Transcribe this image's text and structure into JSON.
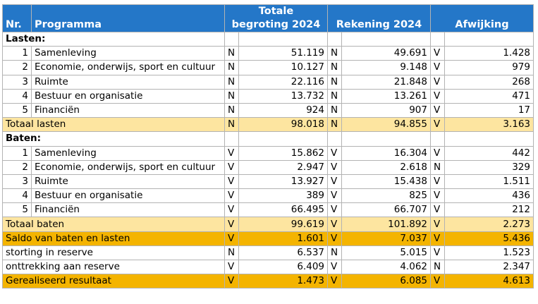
{
  "headers": {
    "nr": "Nr.",
    "programma": "Programma",
    "begroting_line1": "Totale",
    "begroting_line2": "begroting 2024",
    "rekening": "Rekening 2024",
    "afwijking": "Afwijking"
  },
  "lasten": {
    "label": "Lasten:",
    "rows": [
      {
        "nr": "1",
        "name": "Samenleving",
        "b_flag": "N",
        "b_val": "51.119",
        "r_flag": "N",
        "r_val": "49.691",
        "a_flag": "V",
        "a_val": "1.428"
      },
      {
        "nr": "2",
        "name": "Economie, onderwijs, sport en cultuur",
        "b_flag": "N",
        "b_val": "10.127",
        "r_flag": "N",
        "r_val": "9.148",
        "a_flag": "V",
        "a_val": "979"
      },
      {
        "nr": "3",
        "name": "Ruimte",
        "b_flag": "N",
        "b_val": "22.116",
        "r_flag": "N",
        "r_val": "21.848",
        "a_flag": "V",
        "a_val": "268"
      },
      {
        "nr": "4",
        "name": "Bestuur en organisatie",
        "b_flag": "N",
        "b_val": "13.732",
        "r_flag": "N",
        "r_val": "13.261",
        "a_flag": "V",
        "a_val": "471"
      },
      {
        "nr": "5",
        "name": "Financiën",
        "b_flag": "N",
        "b_val": "924",
        "r_flag": "N",
        "r_val": "907",
        "a_flag": "V",
        "a_val": "17"
      }
    ],
    "total": {
      "name": "Totaal lasten",
      "b_flag": "N",
      "b_val": "98.018",
      "r_flag": "N",
      "r_val": "94.855",
      "a_flag": "V",
      "a_val": "3.163"
    }
  },
  "baten": {
    "label": "Baten:",
    "rows": [
      {
        "nr": "1",
        "name": "Samenleving",
        "b_flag": "V",
        "b_val": "15.862",
        "r_flag": "V",
        "r_val": "16.304",
        "a_flag": "V",
        "a_val": "442"
      },
      {
        "nr": "2",
        "name": "Economie, onderwijs, sport en cultuur",
        "b_flag": "V",
        "b_val": "2.947",
        "r_flag": "V",
        "r_val": "2.618",
        "a_flag": "N",
        "a_val": "329"
      },
      {
        "nr": "3",
        "name": "Ruimte",
        "b_flag": "V",
        "b_val": "13.927",
        "r_flag": "V",
        "r_val": "15.438",
        "a_flag": "V",
        "a_val": "1.511"
      },
      {
        "nr": "4",
        "name": "Bestuur en organisatie",
        "b_flag": "V",
        "b_val": "389",
        "r_flag": "V",
        "r_val": "825",
        "a_flag": "V",
        "a_val": "436"
      },
      {
        "nr": "5",
        "name": "Financiën",
        "b_flag": "V",
        "b_val": "66.495",
        "r_flag": "V",
        "r_val": "66.707",
        "a_flag": "V",
        "a_val": "212"
      }
    ],
    "total": {
      "name": "Totaal baten",
      "b_flag": "V",
      "b_val": "99.619",
      "r_flag": "V",
      "r_val": "101.892",
      "a_flag": "V",
      "a_val": "2.273"
    }
  },
  "saldo": {
    "name": "Saldo van baten en lasten",
    "b_flag": "V",
    "b_val": "1.601",
    "r_flag": "V",
    "r_val": "7.037",
    "a_flag": "V",
    "a_val": "5.436"
  },
  "reserves": [
    {
      "name": "storting in reserve",
      "b_flag": "N",
      "b_val": "6.537",
      "r_flag": "N",
      "r_val": "5.015",
      "a_flag": "V",
      "a_val": "1.523"
    },
    {
      "name": "onttrekking aan reserve",
      "b_flag": "V",
      "b_val": "6.409",
      "r_flag": "V",
      "r_val": "4.062",
      "a_flag": "N",
      "a_val": "2.347"
    }
  ],
  "resultaat": {
    "name": "Gerealiseerd resultaat",
    "b_flag": "V",
    "b_val": "1.473",
    "r_flag": "V",
    "r_val": "6.085",
    "a_flag": "V",
    "a_val": "4.613"
  },
  "colors": {
    "header_bg": "#2477c8",
    "total_bg": "#fde5a0",
    "saldo_bg": "#f4b400",
    "border": "#b3b3b3"
  }
}
